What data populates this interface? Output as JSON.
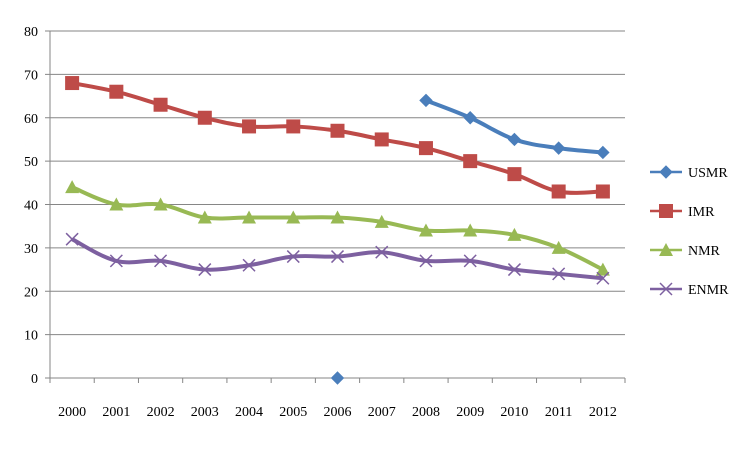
{
  "chart_data": {
    "type": "line",
    "title": "",
    "xlabel": "",
    "ylabel": "",
    "x": [
      "2000",
      "2001",
      "2002",
      "2003",
      "2004",
      "2005",
      "2006",
      "2007",
      "2008",
      "2009",
      "2010",
      "2011",
      "2012"
    ],
    "ylim": [
      0,
      80
    ],
    "yticks": [
      0,
      10,
      20,
      30,
      40,
      50,
      60,
      70,
      80
    ],
    "grid": "horizontal",
    "legend_position": "right",
    "series": [
      {
        "name": "USMR",
        "color": "#4a7ebb",
        "marker": "diamond",
        "values": [
          null,
          null,
          null,
          null,
          null,
          null,
          0,
          null,
          64,
          60,
          55,
          53,
          52
        ]
      },
      {
        "name": "IMR",
        "color": "#be4b48",
        "marker": "square",
        "values": [
          68,
          66,
          63,
          60,
          58,
          58,
          57,
          55,
          53,
          50,
          47,
          43,
          43
        ]
      },
      {
        "name": "NMR",
        "color": "#98b954",
        "marker": "triangle",
        "values": [
          44,
          40,
          40,
          37,
          37,
          37,
          37,
          36,
          34,
          34,
          33,
          30,
          25
        ]
      },
      {
        "name": "ENMR",
        "color": "#7d60a0",
        "marker": "x",
        "values": [
          32,
          27,
          27,
          25,
          26,
          28,
          28,
          29,
          27,
          27,
          25,
          24,
          23
        ]
      }
    ]
  }
}
